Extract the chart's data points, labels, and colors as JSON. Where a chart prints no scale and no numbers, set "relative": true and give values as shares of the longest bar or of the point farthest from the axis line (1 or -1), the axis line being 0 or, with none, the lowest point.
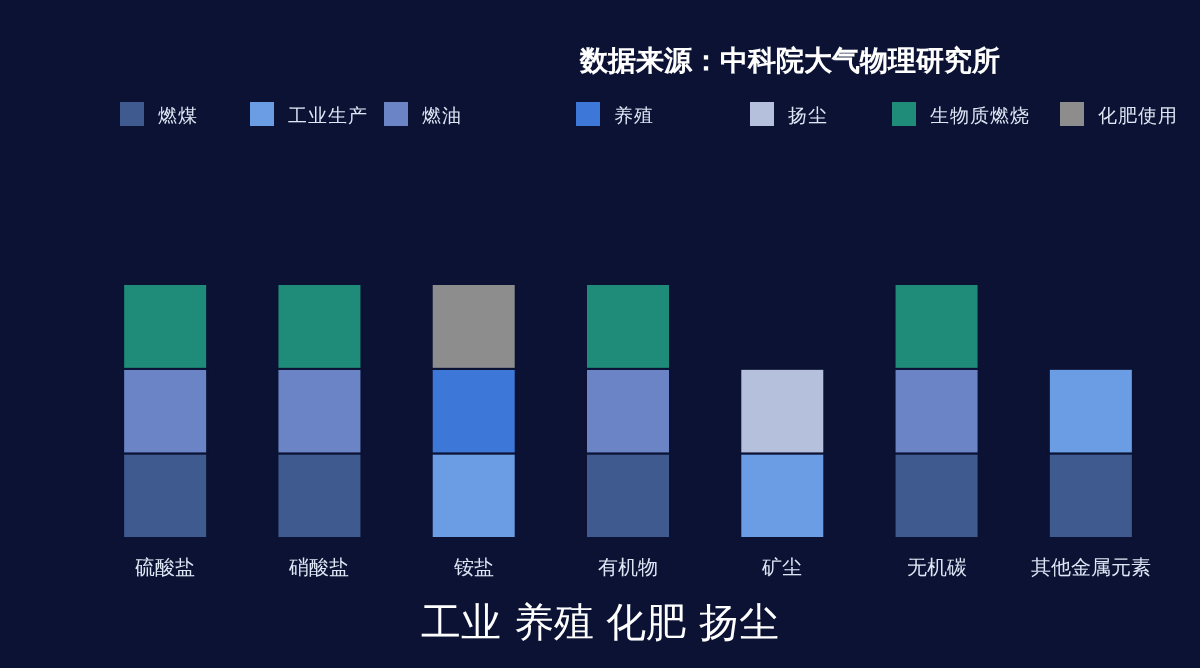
{
  "chart_data": {
    "type": "bar",
    "stacked": true,
    "relative": true,
    "legend": "top",
    "annotations": [
      "数据来源：中科院大气物理研究所",
      "工业 养殖 化肥 扬尘"
    ],
    "categories": [
      "硫酸盐",
      "硝酸盐",
      "铵盐",
      "有机物",
      "矿尘",
      "无机碳",
      "其他金属元素"
    ],
    "series": [
      {
        "name": "燃煤",
        "color": "#3f5a8f",
        "values": [
          0.333,
          0.333,
          null,
          0.333,
          null,
          0.333,
          0.333
        ]
      },
      {
        "name": "工业生产",
        "color": "#6a9de3",
        "values": [
          null,
          null,
          0.333,
          null,
          0.333,
          null,
          0.333
        ]
      },
      {
        "name": "燃油",
        "color": "#6b84c6",
        "values": [
          0.333,
          0.333,
          null,
          0.333,
          null,
          0.333,
          null
        ]
      },
      {
        "name": "养殖",
        "color": "#3d78d8",
        "values": [
          null,
          null,
          0.333,
          null,
          null,
          null,
          null
        ]
      },
      {
        "name": "扬尘",
        "color": "#b4c0dc",
        "values": [
          null,
          null,
          null,
          null,
          0.333,
          null,
          null
        ]
      },
      {
        "name": "生物质燃烧",
        "color": "#1e8c78",
        "values": [
          0.334,
          0.334,
          null,
          0.334,
          null,
          0.334,
          null
        ]
      },
      {
        "name": "化肥使用",
        "color": "#8d8d8d",
        "values": [
          null,
          null,
          0.334,
          null,
          null,
          null,
          null
        ]
      }
    ]
  }
}
